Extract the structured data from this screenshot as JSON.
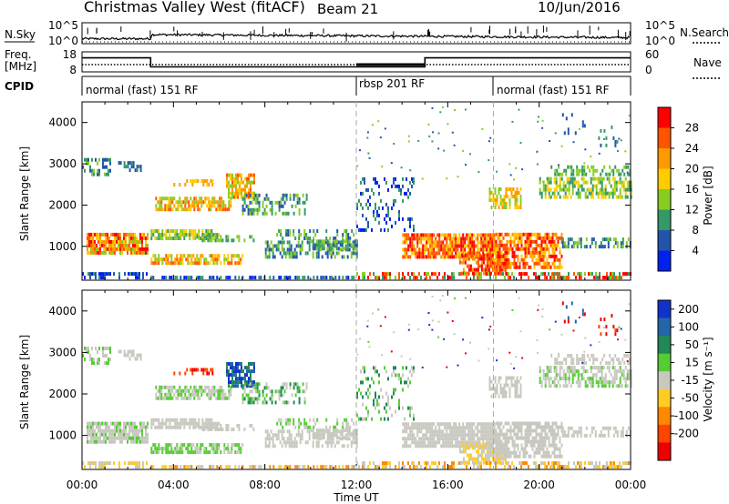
{
  "header": {
    "title": "Christmas Valley West (fitACF)",
    "beam": "Beam 21",
    "date": "10/Jun/2016"
  },
  "panels": {
    "nsky_label": "N.Sky",
    "nsky_ticks": [
      "10^5",
      "10^0"
    ],
    "nsearch_label": "N.Search",
    "nsearch_ticks": [
      "10^5",
      "10^0"
    ],
    "freq_label_1": "Freq.",
    "freq_label_2": "[MHz]",
    "freq_ticks": [
      "18",
      "8"
    ],
    "nave_label": "Nave",
    "nave_ticks": [
      "60",
      "0"
    ],
    "cpid_label": "CPID",
    "cpid_segments": [
      "normal (fast) 151 RF",
      "rbsp 201 RF",
      "normal (fast) 151 RF"
    ]
  },
  "axes": {
    "ylabel_power": "Slant Range [km]",
    "ylabel_velocity": "Slant Range [km]",
    "xlabel": "Time UT",
    "x_ticks": [
      "00:00",
      "04:00",
      "08:00",
      "12:00",
      "16:00",
      "20:00",
      "00:00"
    ],
    "y_ticks": [
      "4000",
      "3000",
      "2000",
      "1000"
    ]
  },
  "colorbars": {
    "power_label": "Power [dB]",
    "power_ticks": [
      "28",
      "24",
      "20",
      "16",
      "12",
      "8",
      "4"
    ],
    "power_colors": [
      "#ff0000",
      "#ff5500",
      "#ff9900",
      "#ffcc00",
      "#88cc22",
      "#339966",
      "#2255aa",
      "#0022ee"
    ],
    "velocity_label": "Velocity [m s⁻¹]",
    "velocity_ticks": [
      "200",
      "100",
      "50",
      "15",
      "-15",
      "-50",
      "-100",
      "-200"
    ],
    "velocity_colors": [
      "#1133cc",
      "#2266aa",
      "#228855",
      "#55cc33",
      "#c8c8c0",
      "#ffcc22",
      "#ff8800",
      "#ff4400",
      "#ee0000"
    ]
  },
  "chart_data": [
    {
      "type": "line",
      "title": "Christmas Valley West (fitACF)",
      "xlabel": "",
      "ylabel": "N.Sky",
      "x": [
        "00:00",
        "02:50",
        "03:00",
        "24:00"
      ],
      "series": [
        {
          "name": "N.Sky",
          "values": [
            0.4,
            0.4,
            0.9,
            0.6
          ]
        }
      ],
      "ylim_label": [
        "10^0",
        "10^5"
      ]
    },
    {
      "type": "line",
      "ylabel": "Freq. [MHz]",
      "x": [
        "00:00",
        "03:00",
        "03:00",
        "15:00",
        "15:00",
        "24:00"
      ],
      "series": [
        {
          "name": "Freq.",
          "values": [
            15,
            15,
            10.5,
            10.5,
            15,
            15
          ]
        },
        {
          "name": "Nave",
          "values": [
            20,
            20,
            20,
            20,
            20,
            20
          ]
        }
      ],
      "ylim": [
        8,
        18
      ]
    },
    {
      "type": "heatmap",
      "ylabel": "Slant Range [km]",
      "colorbar": "Power [dB]",
      "xlim": [
        "00:00",
        "24:00"
      ],
      "ylim": [
        180,
        4500
      ]
    },
    {
      "type": "heatmap",
      "xlabel": "Time UT",
      "ylabel": "Slant Range [km]",
      "colorbar": "Velocity [m s⁻¹]",
      "xlim": [
        "00:00",
        "24:00"
      ],
      "ylim": [
        180,
        4500
      ]
    }
  ]
}
